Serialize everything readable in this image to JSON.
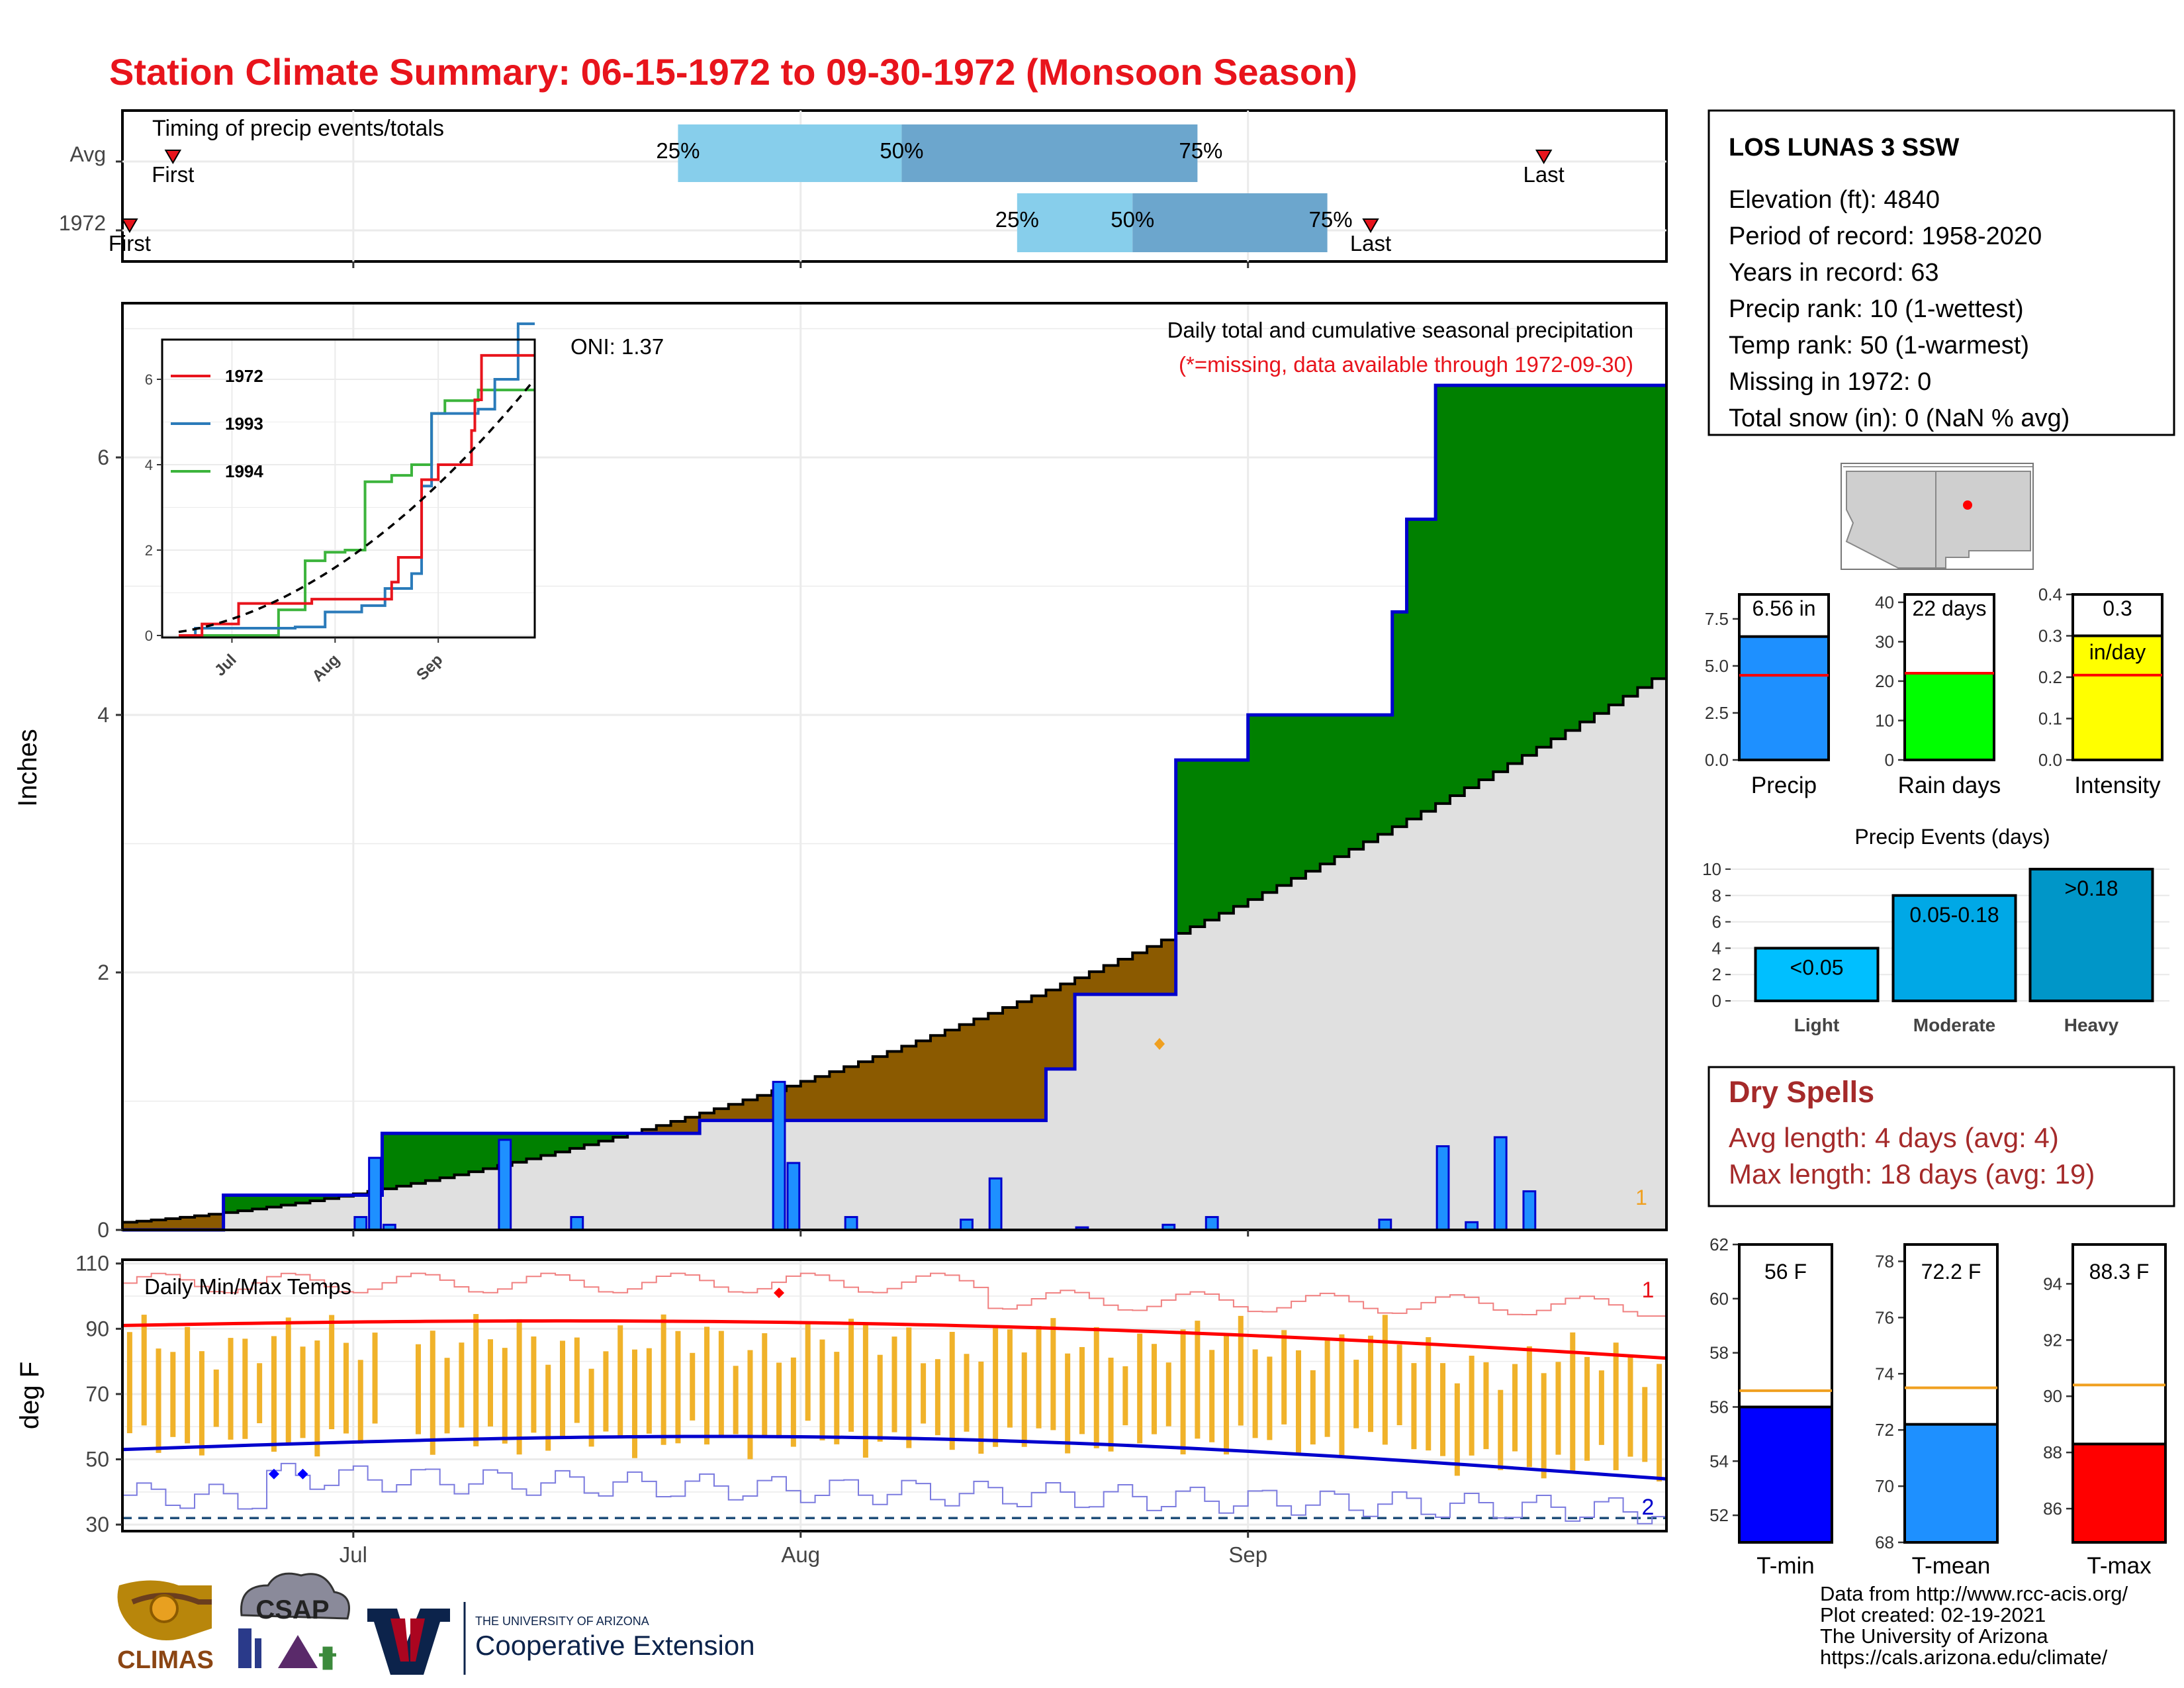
{
  "title": "Station Climate Summary: 06-15-1972 to 09-30-1972 (Monsoon Season)",
  "colors": {
    "title_red": "#e8141c",
    "quartile_light": "#87ceeb",
    "quartile_dark": "#6ca6cd",
    "deficit": "#8b5a00",
    "surplus": "#008000",
    "normal_fill": "#e0e0e0",
    "daily_bar": "#1e90ff",
    "cumulative_line": "#0000cd",
    "temp_bar": "#f0b22a",
    "dry_spell": "#a52a2a"
  },
  "timing_panel": {
    "label": "Timing of precip events/totals",
    "rows": [
      {
        "name": "Avg",
        "first_label": "First",
        "first_day": 3.5,
        "last_label": "Last",
        "last_day": 98.5,
        "q25_label": "25%",
        "q50_label": "50%",
        "q75_label": "75%",
        "q25": 38.5,
        "q50": 54,
        "q75": 74.5
      },
      {
        "name": "1972",
        "first_label": "First",
        "first_day": 0.5,
        "last_label": "Last",
        "last_day": 86.5,
        "q25_label": "25%",
        "q50_label": "50%",
        "q75_label": "75%",
        "q25": 62,
        "q50": 70,
        "q75": 83.5
      }
    ]
  },
  "main_panel": {
    "ylabel": "Inches",
    "subtitle": "Daily total and cumulative seasonal precipitation",
    "missing_note": "(*=missing, data available through 1972-09-30)",
    "oni_label": "ONI: 1.37",
    "corner_count": "1",
    "yticks": [
      "0",
      "2",
      "4",
      "6"
    ],
    "xticks": [
      "Jul",
      "Aug",
      "Sep"
    ]
  },
  "inset": {
    "xticks": [
      "Jul",
      "Aug",
      "Sep"
    ],
    "yticks": [
      "0",
      "2",
      "4",
      "6"
    ],
    "legend": [
      {
        "name": "1972",
        "color": "#e8141c"
      },
      {
        "name": "1993",
        "color": "#2b7bba"
      },
      {
        "name": "1994",
        "color": "#3cb43c"
      }
    ]
  },
  "temp_panel": {
    "ylabel": "deg F",
    "label": "Daily Min/Max Temps",
    "yticks": [
      "30",
      "50",
      "70",
      "90",
      "110"
    ],
    "count_top": "1",
    "count_bottom": "2"
  },
  "station_box": {
    "name": "LOS LUNAS 3 SSW",
    "lines": [
      "Elevation (ft): 4840",
      "Period of record: 1958-2020",
      "Years in record: 63",
      "Precip rank: 10 (1-wettest)",
      "Temp rank: 50 (1-warmest)",
      "Missing in 1972: 0",
      "Total snow (in): 0 (NaN % avg)"
    ]
  },
  "mini_bars": [
    {
      "label": "Precip",
      "value_label": "6.56 in",
      "value": 6.56,
      "avg": 4.5,
      "ymax": 8.8,
      "ticks": [
        "0.0",
        "2.5",
        "5.0",
        "7.5"
      ],
      "tickvals": [
        0,
        2.5,
        5,
        7.5
      ],
      "color": "#1e90ff"
    },
    {
      "label": "Rain days",
      "value_label": "22 days",
      "value": 22,
      "avg": 22,
      "ymax": 42,
      "ticks": [
        "0",
        "10",
        "20",
        "30",
        "40"
      ],
      "tickvals": [
        0,
        10,
        20,
        30,
        40
      ],
      "color": "#00ff00"
    },
    {
      "label": "Intensity",
      "value_label": "0.3",
      "value_label2": "in/day",
      "value": 0.3,
      "avg": 0.205,
      "ymax": 0.4,
      "ticks": [
        "0.0",
        "0.1",
        "0.2",
        "0.3",
        "0.4"
      ],
      "tickvals": [
        0,
        0.1,
        0.2,
        0.3,
        0.4
      ],
      "color": "#ffff00"
    }
  ],
  "events": {
    "title": "Precip Events (days)",
    "ticks": [
      "0",
      "2",
      "4",
      "6",
      "8",
      "10"
    ],
    "categories": [
      {
        "name": "Light",
        "label": "<0.05",
        "value": 4,
        "color": "#00bfff"
      },
      {
        "name": "Moderate",
        "label": "0.05-0.18",
        "value": 8,
        "color": "#00a8e6"
      },
      {
        "name": "Heavy",
        "label": ">0.18",
        "value": 10,
        "color": "#0096c8"
      }
    ]
  },
  "dry_spells": {
    "title": "Dry Spells",
    "avg_line": "Avg length: 4 days (avg: 4)",
    "max_line": "Max length: 18 days (avg: 19)"
  },
  "temp_bars": [
    {
      "label": "T-min",
      "value_label": "56 F",
      "value": 56,
      "avg": 56.6,
      "ymin": 51,
      "ymax": 62,
      "ticks": [
        "52",
        "54",
        "56",
        "58",
        "60",
        "62"
      ],
      "tickvals": [
        52,
        54,
        56,
        58,
        60,
        62
      ],
      "color": "#0000ff"
    },
    {
      "label": "T-mean",
      "value_label": "72.2 F",
      "value": 72.2,
      "avg": 73.5,
      "ymin": 68,
      "ymax": 78.6,
      "ticks": [
        "68",
        "70",
        "72",
        "74",
        "76",
        "78"
      ],
      "tickvals": [
        68,
        70,
        72,
        74,
        76,
        78
      ],
      "color": "#1e90ff"
    },
    {
      "label": "T-max",
      "value_label": "88.3 F",
      "value": 88.3,
      "avg": 90.4,
      "ymin": 84.8,
      "ymax": 95.4,
      "ticks": [
        "86",
        "88",
        "90",
        "92",
        "94"
      ],
      "tickvals": [
        86,
        88,
        90,
        92,
        94
      ],
      "color": "#ff0000"
    }
  ],
  "footer": {
    "lines": [
      "Data from http://www.rcc-acis.org/",
      "Plot created: 02-19-2021",
      "The University of Arizona",
      "https://cals.arizona.edu/climate/"
    ],
    "logo_climas": "CLIMAS",
    "logo_csap": "CSAP",
    "ua_small": "THE UNIVERSITY OF ARIZONA",
    "ua_big": "Cooperative Extension"
  },
  "chart_data": [
    {
      "type": "bar",
      "title": "Daily total and cumulative seasonal precipitation",
      "ylabel": "Inches",
      "ylim": [
        0,
        7.2
      ],
      "x_range": [
        "1972-06-15",
        "1972-09-30"
      ],
      "daily_precip": [
        [
          21,
          0.27
        ],
        [
          51,
          0.1
        ],
        [
          52,
          0.69
        ],
        [
          90,
          0.1
        ],
        [
          103,
          0.08
        ],
        [
          106,
          0.06
        ],
        [
          112,
          0.05
        ],
        [
          118,
          0.04
        ],
        [
          137,
          0.01
        ],
        [
          145,
          0.04
        ],
        [
          183,
          0.1
        ],
        [
          184,
          0.56
        ],
        [
          185,
          0.04
        ],
        [
          193,
          0.7
        ],
        [
          198,
          0.1
        ],
        [
          212,
          1.15
        ],
        [
          213,
          0.52
        ],
        [
          217,
          0.1
        ],
        [
          225,
          0.08
        ],
        [
          227,
          0.4
        ],
        [
          233,
          0.02
        ],
        [
          239,
          0.04
        ],
        [
          242,
          0.1
        ],
        [
          254,
          0.08
        ],
        [
          258,
          0.65
        ],
        [
          260,
          0.06
        ],
        [
          262,
          0.72
        ],
        [
          264,
          0.3
        ]
      ],
      "cumulative_1972": [
        [
          "1972-06-15",
          0.0
        ],
        [
          "1972-06-22",
          0.27
        ],
        [
          "1972-07-02",
          0.27
        ],
        [
          "1972-07-03",
          0.75
        ],
        [
          "1972-07-25",
          0.85
        ],
        [
          "1972-08-18",
          1.25
        ],
        [
          "1972-08-20",
          1.83
        ],
        [
          "1972-08-27",
          3.65
        ],
        [
          "1972-09-01",
          4.0
        ],
        [
          "1972-09-11",
          4.8
        ],
        [
          "1972-09-12",
          5.52
        ],
        [
          "1972-09-14",
          6.56
        ],
        [
          "1972-09-30",
          6.56
        ]
      ],
      "cumulative_avg_end": 4.35
    },
    {
      "type": "line",
      "title": "Daily Min/Max Temps",
      "ylabel": "deg F",
      "ylim": [
        28,
        111
      ],
      "series": [
        {
          "name": "Tmax avg",
          "start": 91,
          "end": 81
        },
        {
          "name": "Tmin avg",
          "start": 53,
          "end": 44
        }
      ]
    }
  ]
}
